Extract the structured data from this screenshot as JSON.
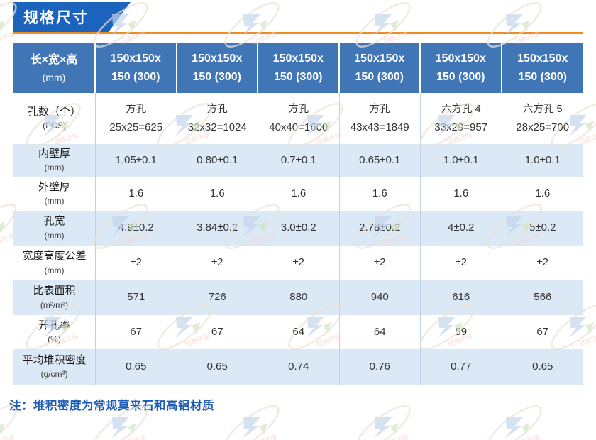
{
  "page": {
    "banner_title": "规格尺寸",
    "note": "注：堆积密度为常规莫来石和高铝材质"
  },
  "colors": {
    "banner_blue": "#1c63be",
    "accent_orange": "#ee8b22",
    "table_header_blue": "#4076b6",
    "row_alt_blue": "#dbe9f7",
    "grid_line": "#bdd3e9",
    "note_blue": "#1d5cb5",
    "text_dark": "#333333"
  },
  "watermark": {
    "icon": "company-logo-watermark",
    "text": "冠鼎环保"
  },
  "table": {
    "corner": {
      "label": "长×宽×高",
      "unit": "(mm)"
    },
    "columns": [
      {
        "line1": "150x150x",
        "line2": "150 (300)"
      },
      {
        "line1": "150x150x",
        "line2": "150 (300)"
      },
      {
        "line1": "150x150x",
        "line2": "150 (300)"
      },
      {
        "line1": "150x150x",
        "line2": "150 (300)"
      },
      {
        "line1": "150x150x",
        "line2": "150 (300)"
      },
      {
        "line1": "150x150x",
        "line2": "150 (300)"
      }
    ],
    "rows": [
      {
        "label": "孔数（个）",
        "unit": "(PCS)",
        "two_line": true,
        "values": [
          {
            "top": "方孔",
            "bottom": "25x25=625"
          },
          {
            "top": "方孔",
            "bottom": "32x32=1024"
          },
          {
            "top": "方孔",
            "bottom": "40x40=1600"
          },
          {
            "top": "方孔",
            "bottom": "43x43=1849"
          },
          {
            "top": "六方孔 4",
            "bottom": "33x29=957"
          },
          {
            "top": "六方孔 5",
            "bottom": "28x25=700"
          }
        ]
      },
      {
        "label": "内壁厚",
        "unit": "(mm)",
        "two_line": false,
        "values": [
          "1.05±0.1",
          "0.80±0.1",
          "0.7±0.1",
          "0.65±0.1",
          "1.0±0.1",
          "1.0±0.1"
        ]
      },
      {
        "label": "外壁厚",
        "unit": "(mm)",
        "two_line": false,
        "values": [
          "1.6",
          "1.6",
          "1.6",
          "1.6",
          "1.6",
          "1.6"
        ]
      },
      {
        "label": "孔宽",
        "unit": "(mm)",
        "two_line": false,
        "values": [
          "4.9±0.2",
          "3.84±0.2",
          "3.0±0.2",
          "2.78±0.2",
          "4±0.2",
          "5±0.2"
        ]
      },
      {
        "label": "宽度高度公差",
        "unit": "(mm)",
        "two_line": false,
        "values": [
          "±2",
          "±2",
          "±2",
          "±2",
          "±2",
          "±2"
        ]
      },
      {
        "label": "比表面积",
        "unit": "(m²/m³)",
        "two_line": false,
        "values": [
          "571",
          "726",
          "880",
          "940",
          "616",
          "566"
        ]
      },
      {
        "label": "开孔率",
        "unit": "(%)",
        "two_line": false,
        "values": [
          "67",
          "67",
          "64",
          "64",
          "59",
          "67"
        ]
      },
      {
        "label": "平均堆积密度",
        "unit": "(g/cm³)",
        "two_line": false,
        "values": [
          "0.65",
          "0.65",
          "0.74",
          "0.76",
          "0.77",
          "0.65"
        ]
      }
    ]
  }
}
